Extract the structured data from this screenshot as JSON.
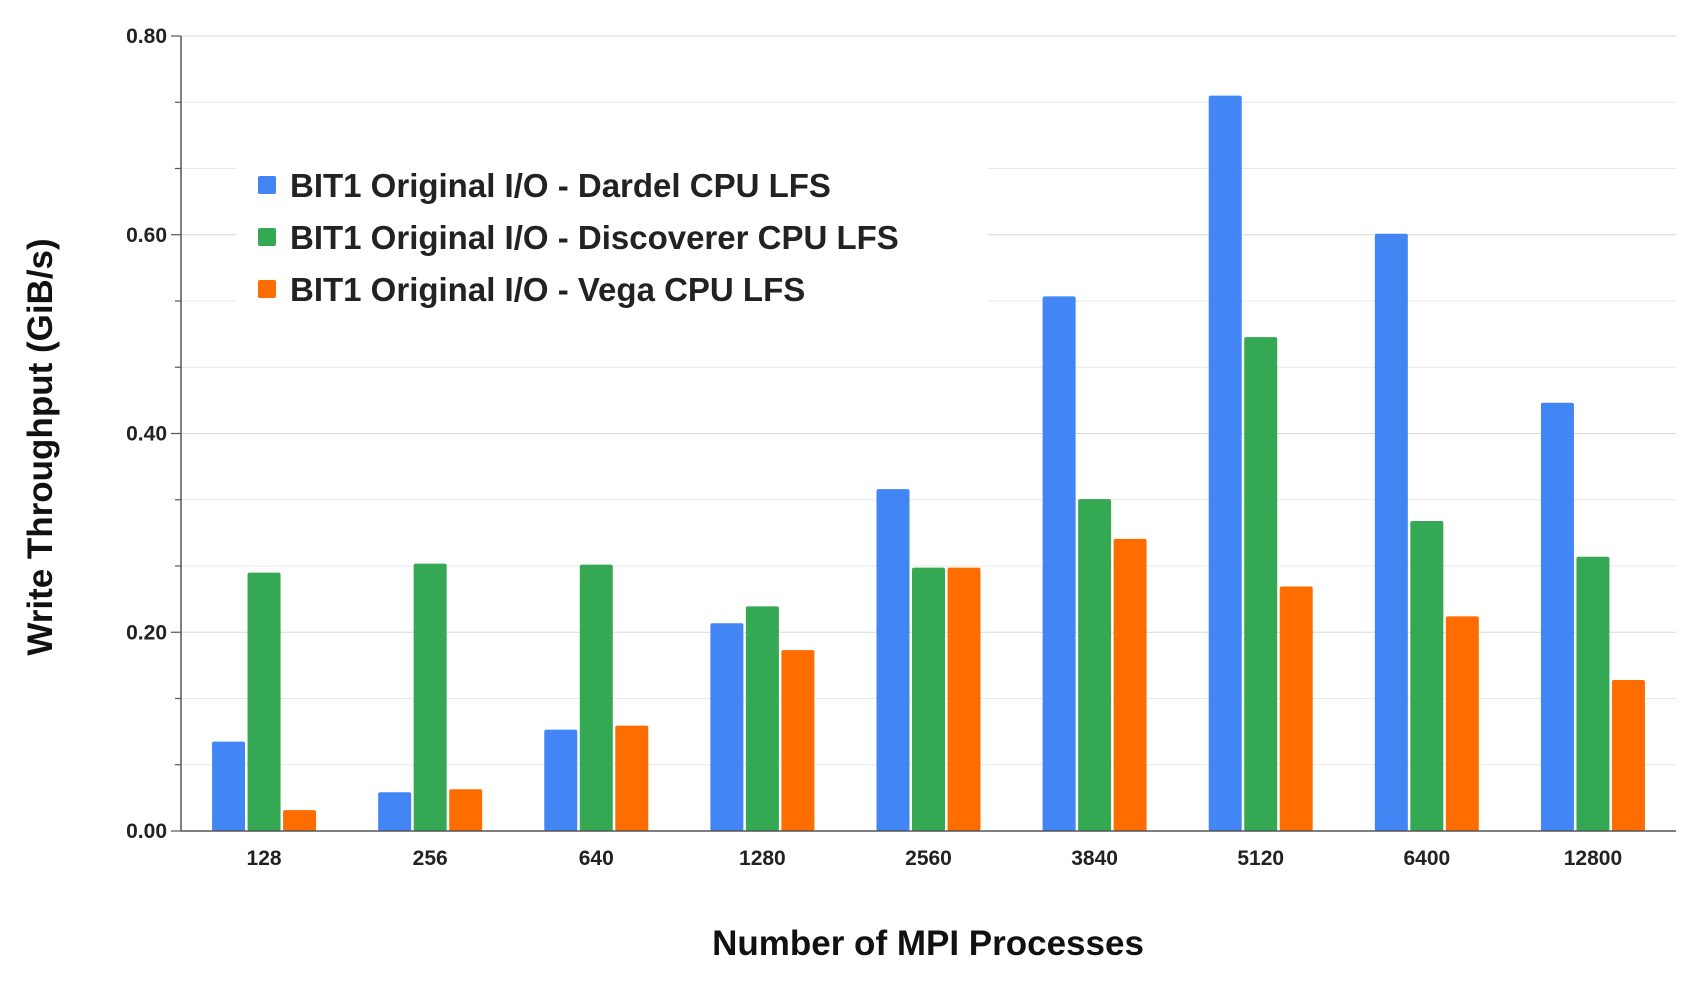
{
  "chart_data": {
    "type": "bar",
    "title": "",
    "xlabel": "Number of MPI Processes",
    "ylabel": "Write Throughput (GiB/s)",
    "ylim": [
      0,
      0.8
    ],
    "yticks": [
      "0.00",
      "0.20",
      "0.40",
      "0.60",
      "0.80"
    ],
    "ytick_values": [
      0,
      0.2,
      0.4,
      0.6,
      0.8
    ],
    "minor_gridlines": true,
    "legend_position": "top-left",
    "categories": [
      "128",
      "256",
      "640",
      "1280",
      "2560",
      "3840",
      "5120",
      "6400",
      "12800"
    ],
    "series": [
      {
        "name": "BIT1 Original I/O - Dardel CPU LFS",
        "color": "#4285F4",
        "values": [
          0.09,
          0.039,
          0.102,
          0.209,
          0.344,
          0.538,
          0.74,
          0.601,
          0.431
        ]
      },
      {
        "name": "BIT1 Original I/O - Discoverer CPU LFS",
        "color": "#34A853",
        "values": [
          0.26,
          0.269,
          0.268,
          0.226,
          0.265,
          0.334,
          0.497,
          0.312,
          0.276
        ]
      },
      {
        "name": "BIT1 Original I/O - Vega CPU LFS",
        "color": "#FF6D01",
        "values": [
          0.021,
          0.042,
          0.106,
          0.182,
          0.265,
          0.294,
          0.246,
          0.216,
          0.152
        ]
      }
    ]
  }
}
